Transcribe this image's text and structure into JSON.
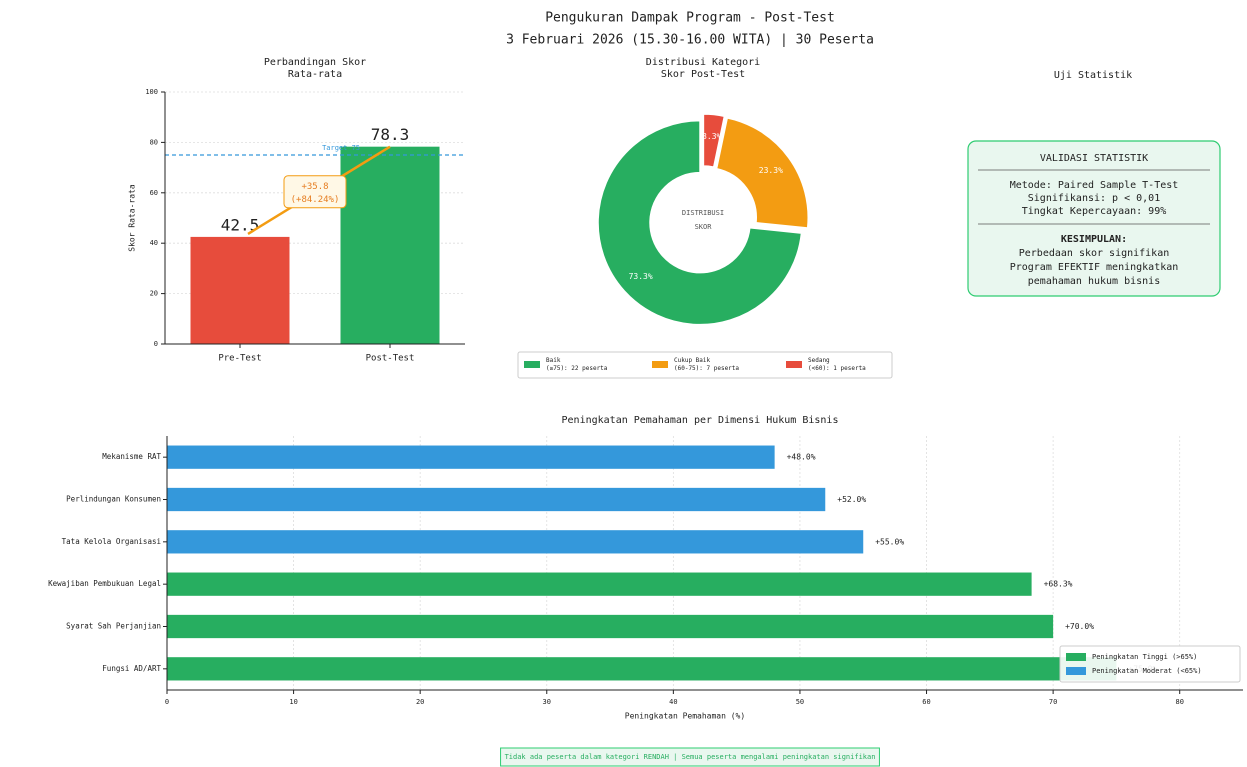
{
  "header": {
    "title": "Pengukuran Dampak Program - Post-Test",
    "subtitle": "3 Februari 2026 (15.30-16.00 WITA) | 30 Peserta"
  },
  "chart_data": [
    {
      "type": "bar",
      "title": "Perbandingan Skor\nRata-rata",
      "categories": [
        "Pre-Test",
        "Post-Test"
      ],
      "values": [
        42.5,
        78.3
      ],
      "colors": [
        "#e74c3c",
        "#27ae60"
      ],
      "ylabel": "Skor Rata-rata",
      "ylim": [
        0,
        100
      ],
      "yticks": [
        0,
        20,
        40,
        60,
        80,
        100
      ],
      "grid": true,
      "target": {
        "value": 75,
        "label": "Target 75"
      },
      "annotation": "+35.8\n(+84.24%)"
    },
    {
      "type": "pie",
      "title": "Distribusi Kategori\nSkor Post-Test",
      "categories": [
        "Baik\n(≥75): 22 peserta",
        "Cukup Baik\n(60-75): 7 peserta",
        "Sedang\n(<60): 1 peserta"
      ],
      "values": [
        73.3,
        23.3,
        3.3
      ],
      "value_labels": [
        "73.3%",
        "23.3%",
        "3.3%"
      ],
      "colors": [
        "#27ae60",
        "#f39c12",
        "#e74c3c"
      ],
      "center_text": "DISTRIBUSI\nSKOR",
      "donut": true
    },
    {
      "type": "hbar",
      "title": "Peningkatan Pemahaman per Dimensi Hukum Bisnis",
      "categories": [
        "Mekanisme RAT",
        "Perlindungan Konsumen",
        "Tata Kelola Organisasi",
        "Kewajiban Pembukuan Legal",
        "Syarat Sah Perjanjian",
        "Fungsi AD/ART"
      ],
      "values": [
        48.0,
        52.0,
        55.0,
        68.3,
        70.0,
        75.0
      ],
      "value_labels": [
        "+48.0%",
        "+52.0%",
        "+55.0%",
        "+68.3%",
        "+70.0%",
        "+75.0%"
      ],
      "colors": [
        "#3498db",
        "#3498db",
        "#3498db",
        "#27ae60",
        "#27ae60",
        "#27ae60"
      ],
      "xlabel": "Peningkatan Pemahaman (%)",
      "xlim": [
        0,
        85
      ],
      "xticks": [
        0,
        10,
        20,
        30,
        40,
        50,
        60,
        70,
        80
      ],
      "grid": true,
      "legend": "lower right",
      "legend_entries": [
        {
          "name": "Peningkatan Tinggi (>65%)",
          "color": "#27ae60"
        },
        {
          "name": "Peningkatan Moderat (<65%)",
          "color": "#3498db"
        }
      ]
    }
  ],
  "stat_panel": {
    "title": "Uji Statistik",
    "heading": "VALIDASI STATISTIK",
    "lines": [
      "Metode: Paired Sample T-Test",
      "Signifikansi: p < 0,01",
      "Tingkat Kepercayaan: 99%"
    ],
    "conclusion_heading": "KESIMPULAN:",
    "conclusion": [
      "Perbedaan skor signifikan",
      "Program EFEKTIF meningkatkan",
      "pemahaman hukum bisnis"
    ]
  },
  "footer": "Tidak ada peserta dalam kategori RENDAH | Semua peserta mengalami peningkatan signifikan"
}
